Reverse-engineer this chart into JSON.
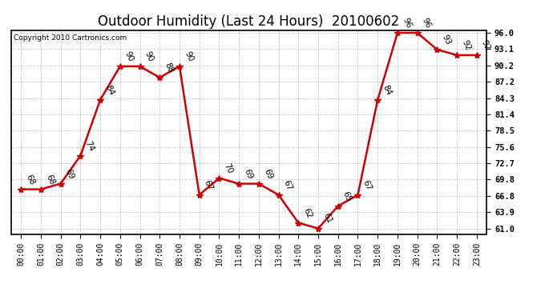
{
  "title": "Outdoor Humidity (Last 24 Hours)  20100602",
  "copyright": "Copyright 2010 Cartronics.com",
  "hours": [
    0,
    1,
    2,
    3,
    4,
    5,
    6,
    7,
    8,
    9,
    10,
    11,
    12,
    13,
    14,
    15,
    16,
    17,
    18,
    19,
    20,
    21,
    22,
    23
  ],
  "values": [
    68,
    68,
    69,
    74,
    84,
    90,
    90,
    88,
    90,
    67,
    70,
    69,
    69,
    67,
    62,
    61,
    65,
    67,
    84,
    96,
    96,
    93,
    92,
    92
  ],
  "xlabels": [
    "00:00",
    "01:00",
    "02:00",
    "03:00",
    "04:00",
    "05:00",
    "06:00",
    "07:00",
    "08:00",
    "09:00",
    "10:00",
    "11:00",
    "12:00",
    "13:00",
    "14:00",
    "15:00",
    "16:00",
    "17:00",
    "18:00",
    "19:00",
    "20:00",
    "21:00",
    "22:00",
    "23:00"
  ],
  "yticks": [
    61.0,
    63.9,
    66.8,
    69.8,
    72.7,
    75.6,
    78.5,
    81.4,
    84.3,
    87.2,
    90.2,
    93.1,
    96.0
  ],
  "ylim": [
    61.0,
    96.0
  ],
  "line_color": "#cc0000",
  "marker_color": "#cc0000",
  "bg_color": "#ffffff",
  "grid_color": "#bbbbbb",
  "title_fontsize": 12,
  "xlabel_fontsize": 7,
  "ylabel_fontsize": 7.5,
  "annotation_fontsize": 7.5,
  "copyright_fontsize": 6.5
}
